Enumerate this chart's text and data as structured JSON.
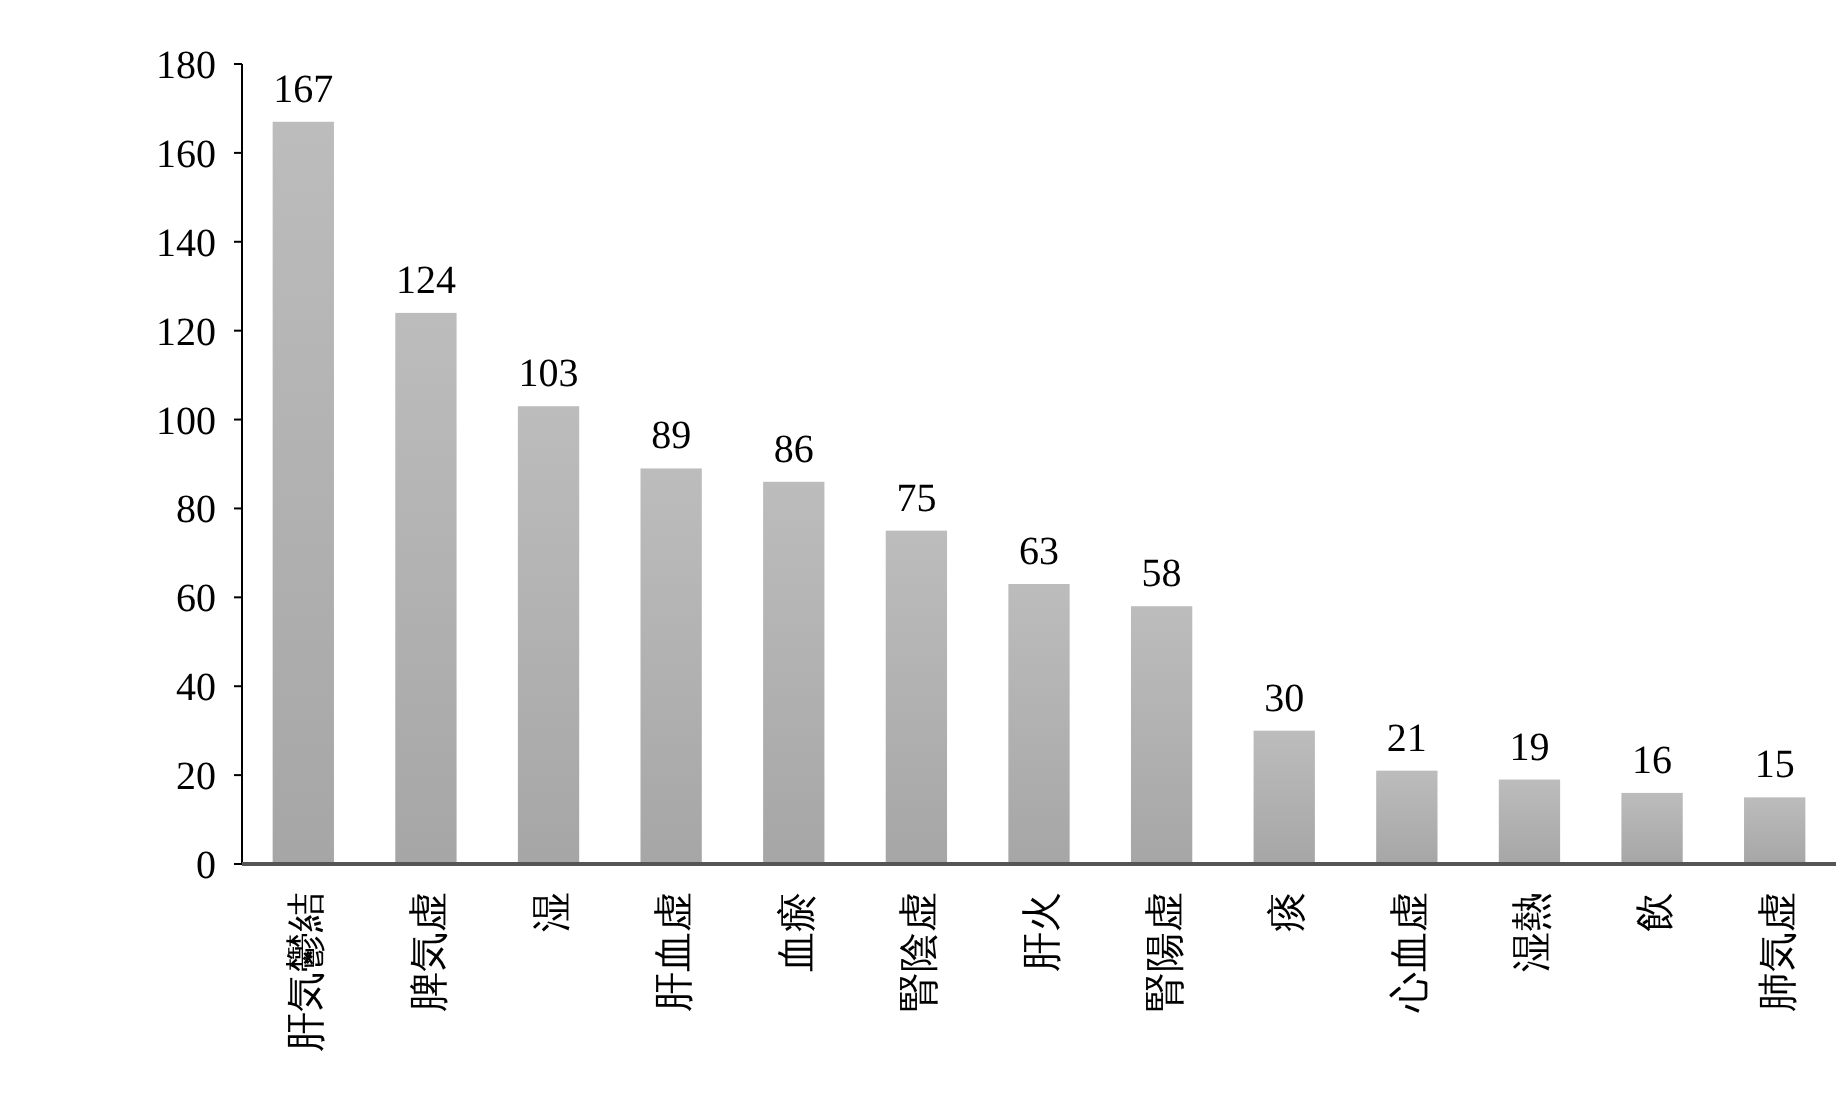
{
  "chart_data": {
    "type": "bar",
    "categories": [
      "肝気鬱結",
      "脾気虚",
      "湿",
      "肝血虚",
      "血瘀",
      "腎陰虚",
      "肝火",
      "腎陽虚",
      "痰",
      "心血虚",
      "湿熱",
      "飲",
      "肺気虚"
    ],
    "values": [
      167,
      124,
      103,
      89,
      86,
      75,
      63,
      58,
      30,
      21,
      19,
      16,
      15
    ],
    "color": "#a6a6a6",
    "ylim": [
      0,
      180
    ],
    "yticks": [
      0,
      20,
      40,
      60,
      80,
      100,
      120,
      140,
      160,
      180
    ],
    "data_labels": true,
    "grid": false
  }
}
